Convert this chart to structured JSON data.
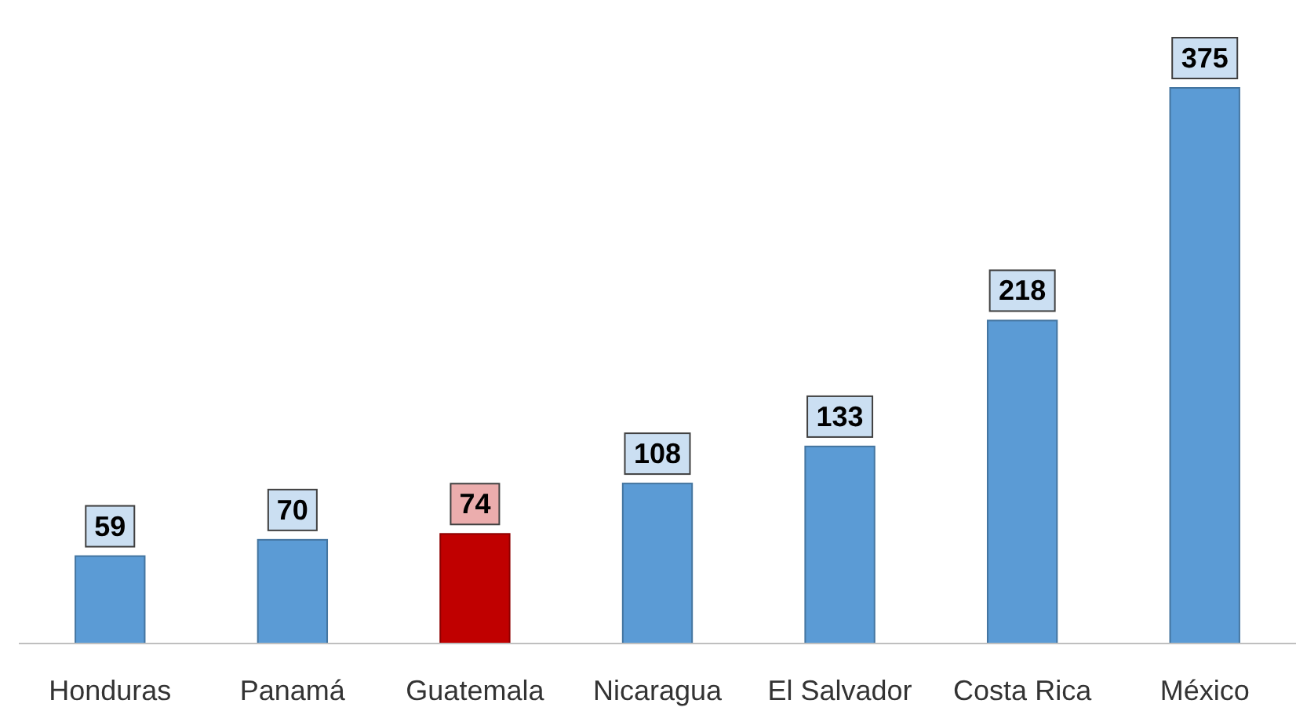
{
  "chart_data": {
    "type": "bar",
    "categories": [
      "Honduras",
      "Panamá",
      "Guatemala",
      "Nicaragua",
      "El Salvador",
      "Costa Rica",
      "México"
    ],
    "values": [
      59,
      70,
      74,
      108,
      133,
      218,
      375
    ],
    "colors": [
      "#5b9bd5",
      "#5b9bd5",
      "#c00000",
      "#5b9bd5",
      "#5b9bd5",
      "#5b9bd5",
      "#5b9bd5"
    ],
    "data_labels": true
  }
}
